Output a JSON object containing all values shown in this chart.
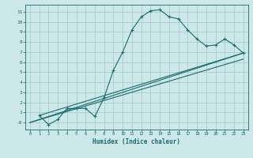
{
  "xlabel": "Humidex (Indice chaleur)",
  "bg_color": "#cce8e8",
  "grid_color": "#aacccc",
  "line_color": "#1a6b6b",
  "xlim": [
    -0.5,
    23.5
  ],
  "ylim": [
    -0.7,
    11.7
  ],
  "xticks": [
    0,
    1,
    2,
    3,
    4,
    5,
    6,
    7,
    8,
    9,
    10,
    11,
    12,
    13,
    14,
    15,
    16,
    17,
    18,
    19,
    20,
    21,
    22,
    23
  ],
  "yticks": [
    0,
    1,
    2,
    3,
    4,
    5,
    6,
    7,
    8,
    9,
    10,
    11
  ],
  "ytick_labels": [
    "-0",
    "1",
    "2",
    "3",
    "4",
    "5",
    "6",
    "7",
    "8",
    "9",
    "10",
    "11"
  ],
  "curve1_x": [
    1,
    2,
    3,
    4,
    5,
    6,
    7,
    8,
    9,
    10,
    11,
    12,
    13,
    14,
    15,
    16,
    17,
    18,
    19,
    20,
    21,
    22,
    23
  ],
  "curve1_y": [
    0.7,
    -0.2,
    0.3,
    1.4,
    1.4,
    1.4,
    0.6,
    2.5,
    5.2,
    7.0,
    9.2,
    10.5,
    11.1,
    11.2,
    10.5,
    10.3,
    9.2,
    8.3,
    7.6,
    7.7,
    8.3,
    7.7,
    6.9
  ],
  "line1_x": [
    1,
    23
  ],
  "line1_y": [
    0.7,
    6.9
  ],
  "line2_x": [
    0,
    23
  ],
  "line2_y": [
    0.0,
    6.3
  ],
  "line3_x": [
    0,
    23
  ],
  "line3_y": [
    0.0,
    6.9
  ]
}
